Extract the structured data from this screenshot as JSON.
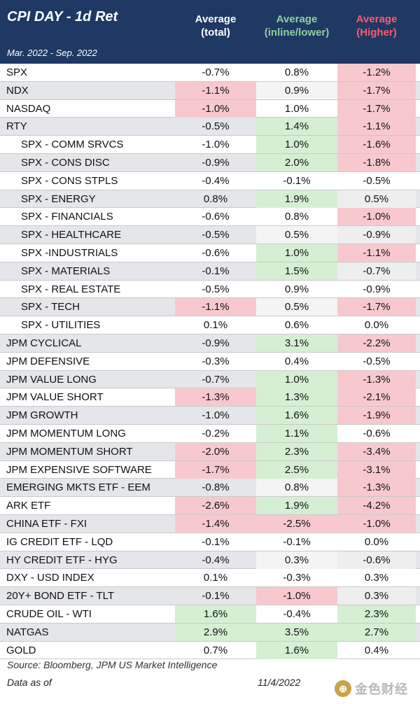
{
  "chart_data": {
    "type": "table",
    "title": "CPI DAY - 1d Ret",
    "period": "Mar. 2022 - Sep. 2022",
    "columns": [
      {
        "line1": "Average",
        "line2": "(total)"
      },
      {
        "line1": "Average",
        "line2": "(inline/lower)"
      },
      {
        "line1": "Average",
        "line2": "(Higher)"
      }
    ],
    "rows": [
      {
        "name": "SPX",
        "values": [
          "-0.7%",
          "0.8%",
          "-1.2%"
        ]
      },
      {
        "name": "NDX",
        "values": [
          "-1.1%",
          "0.9%",
          "-1.7%"
        ]
      },
      {
        "name": "NASDAQ",
        "values": [
          "-1.0%",
          "1.0%",
          "-1.7%"
        ]
      },
      {
        "name": "RTY",
        "values": [
          "-0.5%",
          "1.4%",
          "-1.1%"
        ]
      },
      {
        "name": "SPX - COMM SRVCS",
        "values": [
          "-1.0%",
          "1.0%",
          "-1.6%"
        ]
      },
      {
        "name": "SPX - CONS DISC",
        "values": [
          "-0.9%",
          "2.0%",
          "-1.8%"
        ]
      },
      {
        "name": "SPX - CONS STPLS",
        "values": [
          "-0.4%",
          "-0.1%",
          "-0.5%"
        ]
      },
      {
        "name": "SPX - ENERGY",
        "values": [
          "0.8%",
          "1.9%",
          "0.5%"
        ]
      },
      {
        "name": "SPX - FINANCIALS",
        "values": [
          "-0.6%",
          "0.8%",
          "-1.0%"
        ]
      },
      {
        "name": "SPX - HEALTHCARE",
        "values": [
          "-0.5%",
          "0.5%",
          "-0.9%"
        ]
      },
      {
        "name": "SPX -INDUSTRIALS",
        "values": [
          "-0.6%",
          "1.0%",
          "-1.1%"
        ]
      },
      {
        "name": "SPX - MATERIALS",
        "values": [
          "-0.1%",
          "1.5%",
          "-0.7%"
        ]
      },
      {
        "name": "SPX - REAL ESTATE",
        "values": [
          "-0.5%",
          "0.9%",
          "-0.9%"
        ]
      },
      {
        "name": "SPX - TECH",
        "values": [
          "-1.1%",
          "0.5%",
          "-1.7%"
        ]
      },
      {
        "name": "SPX - UTILITIES",
        "values": [
          "0.1%",
          "0.6%",
          "0.0%"
        ]
      },
      {
        "name": "JPM CYCLICAL",
        "values": [
          "-0.9%",
          "3.1%",
          "-2.2%"
        ]
      },
      {
        "name": "JPM DEFENSIVE",
        "values": [
          "-0.3%",
          "0.4%",
          "-0.5%"
        ]
      },
      {
        "name": "JPM VALUE LONG",
        "values": [
          "-0.7%",
          "1.0%",
          "-1.3%"
        ]
      },
      {
        "name": "JPM VALUE SHORT",
        "values": [
          "-1.3%",
          "1.3%",
          "-2.1%"
        ]
      },
      {
        "name": "JPM GROWTH",
        "values": [
          "-1.0%",
          "1.6%",
          "-1.9%"
        ]
      },
      {
        "name": "JPM MOMENTUM LONG",
        "values": [
          "-0.2%",
          "1.1%",
          "-0.6%"
        ]
      },
      {
        "name": "JPM MOMENTUM SHORT",
        "values": [
          "-2.0%",
          "2.3%",
          "-3.4%"
        ]
      },
      {
        "name": "JPM EXPENSIVE SOFTWARE",
        "values": [
          "-1.7%",
          "2.5%",
          "-3.1%"
        ]
      },
      {
        "name": "EMERGING MKTS ETF - EEM",
        "values": [
          "-0.8%",
          "0.8%",
          "-1.3%"
        ]
      },
      {
        "name": "ARK ETF",
        "values": [
          "-2.6%",
          "1.9%",
          "-4.2%"
        ]
      },
      {
        "name": "CHINA ETF - FXI",
        "values": [
          "-1.4%",
          "-2.5%",
          "-1.0%"
        ]
      },
      {
        "name": "IG CREDIT ETF - LQD",
        "values": [
          "-0.1%",
          "-0.1%",
          "0.0%"
        ]
      },
      {
        "name": "HY CREDIT ETF - HYG",
        "values": [
          "-0.4%",
          "0.3%",
          "-0.6%"
        ]
      },
      {
        "name": "DXY - USD INDEX",
        "values": [
          "0.1%",
          "-0.3%",
          "0.3%"
        ]
      },
      {
        "name": "20Y+ BOND ETF - TLT",
        "values": [
          "-0.1%",
          "-1.0%",
          "0.3%"
        ]
      },
      {
        "name": "CRUDE OIL - WTI",
        "values": [
          "1.6%",
          "-0.4%",
          "2.3%"
        ]
      },
      {
        "name": "NATGAS",
        "values": [
          "2.9%",
          "3.5%",
          "2.7%"
        ]
      },
      {
        "name": "GOLD",
        "values": [
          "0.7%",
          "1.6%",
          "0.4%"
        ]
      }
    ],
    "highlight": [
      [
        "",
        "",
        "neg"
      ],
      [
        "neg",
        "",
        "neg"
      ],
      [
        "neg",
        "",
        "neg"
      ],
      [
        "",
        "pos",
        "neg"
      ],
      [
        "",
        "pos",
        "neg"
      ],
      [
        "",
        "pos",
        "neg"
      ],
      [
        "",
        "",
        ""
      ],
      [
        "",
        "pos",
        ""
      ],
      [
        "",
        "",
        "neg"
      ],
      [
        "",
        "",
        ""
      ],
      [
        "",
        "pos",
        "neg"
      ],
      [
        "",
        "pos",
        ""
      ],
      [
        "",
        "",
        ""
      ],
      [
        "neg",
        "",
        "neg"
      ],
      [
        "",
        "",
        ""
      ],
      [
        "",
        "pos",
        "neg"
      ],
      [
        "",
        "",
        ""
      ],
      [
        "",
        "pos",
        "neg"
      ],
      [
        "neg",
        "pos",
        "neg"
      ],
      [
        "",
        "pos",
        "neg"
      ],
      [
        "",
        "pos",
        ""
      ],
      [
        "neg",
        "pos",
        "neg"
      ],
      [
        "neg",
        "pos",
        "neg"
      ],
      [
        "",
        "",
        "neg"
      ],
      [
        "neg",
        "pos",
        "neg"
      ],
      [
        "neg",
        "neg",
        "neg"
      ],
      [
        "",
        "",
        ""
      ],
      [
        "",
        "",
        ""
      ],
      [
        "",
        "",
        ""
      ],
      [
        "",
        "neg",
        ""
      ],
      [
        "pos",
        "",
        "pos"
      ],
      [
        "pos",
        "pos",
        "pos"
      ],
      [
        "",
        "pos",
        ""
      ]
    ],
    "colors": {
      "header_bg": "#1f3864",
      "positive_fill": "#d5efd3",
      "negative_fill": "#f7c9cf",
      "inline_header": "#8fd19e",
      "higher_header": "#ff5b6b"
    }
  },
  "footer": {
    "source": "Source: Bloomberg, JPM US Market Intelligence",
    "asof_label": "Data as of",
    "asof_date": "11/4/2022"
  },
  "watermark": {
    "text": "金色财经",
    "logo_glyph": "⊕"
  }
}
